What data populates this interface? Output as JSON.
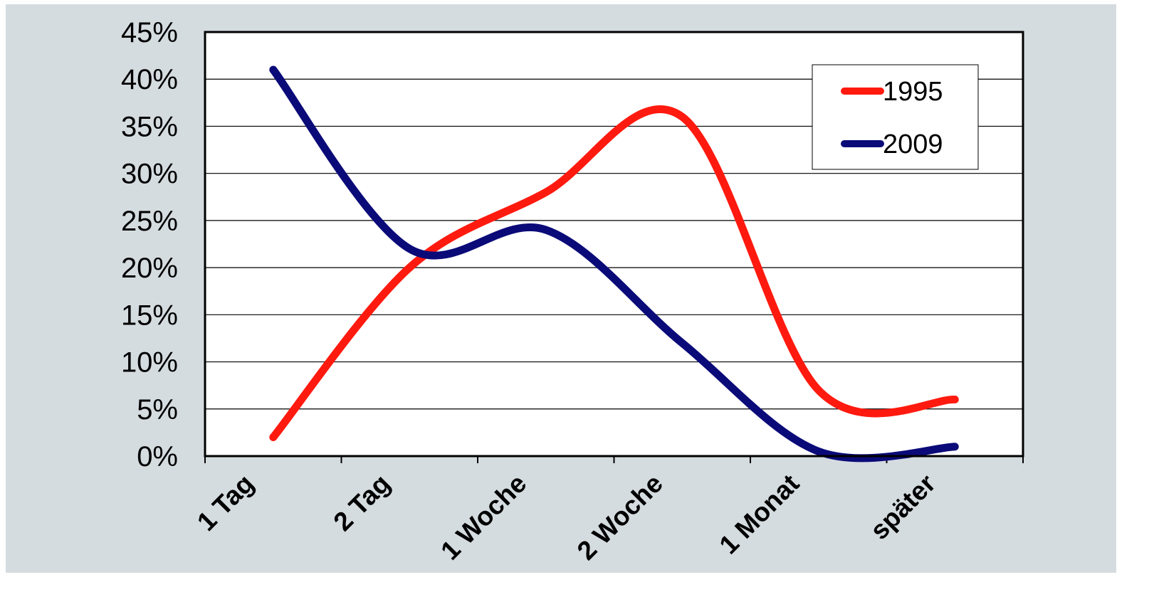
{
  "chart_data": {
    "type": "line",
    "title": "",
    "xlabel": "",
    "ylabel": "",
    "categories": [
      "1 Tag",
      "2 Tag",
      "1 Woche",
      "2 Woche",
      "1 Monat",
      "später"
    ],
    "y_ticks": [
      "0%",
      "5%",
      "10%",
      "15%",
      "20%",
      "25%",
      "30%",
      "35%",
      "40%",
      "45%"
    ],
    "ylim": [
      0,
      45
    ],
    "grid": true,
    "smooth": true,
    "legend_position": "top-right",
    "series": [
      {
        "name": "1995",
        "color": "#ff1a0f",
        "values": [
          2,
          20,
          28,
          36,
          7,
          6
        ]
      },
      {
        "name": "2009",
        "color": "#0a0a78",
        "values": [
          41,
          22,
          24,
          12,
          0.5,
          1
        ]
      }
    ]
  }
}
